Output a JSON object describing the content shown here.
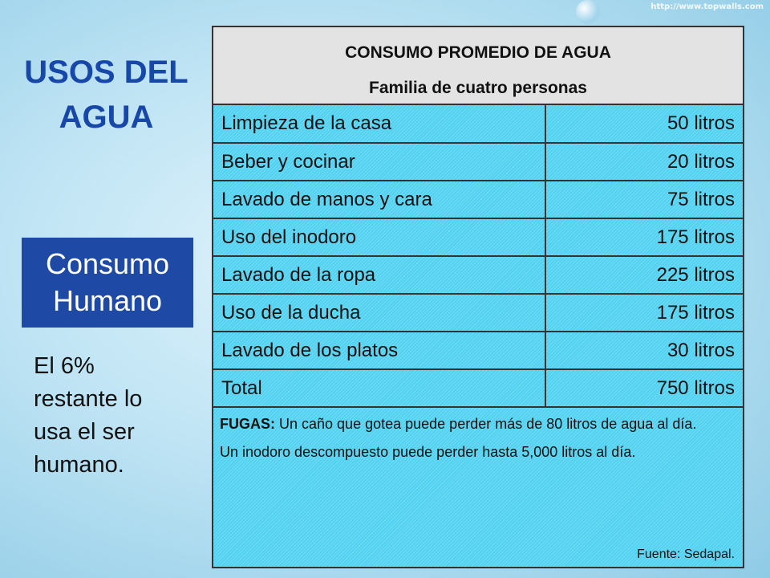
{
  "watermark": "http://www.topwalls.com",
  "title": {
    "line1": "USOS DEL",
    "line2": "AGUA"
  },
  "consumo": {
    "line1": "Consumo",
    "line2": "Humano"
  },
  "note": {
    "line1": "El 6%",
    "line2": "restante lo",
    "line3": "usa el ser",
    "line4": "humano."
  },
  "table": {
    "heading1": "CONSUMO PROMEDIO DE AGUA",
    "heading2": "Familia de cuatro personas",
    "rows": [
      {
        "label": "Limpieza de la casa",
        "value": "50 litros"
      },
      {
        "label": "Beber y cocinar",
        "value": "20 litros"
      },
      {
        "label": "Lavado de manos y cara",
        "value": "75 litros"
      },
      {
        "label": "Uso del inodoro",
        "value": "175 litros"
      },
      {
        "label": "Lavado de la ropa",
        "value": "225 litros"
      },
      {
        "label": "Uso de la ducha",
        "value": "175 litros"
      },
      {
        "label": "Lavado de los platos",
        "value": "30 litros"
      },
      {
        "label": "Total",
        "value": "750 litros"
      }
    ]
  },
  "fugas": {
    "bold_label": "FUGAS:",
    "text1": " Un caño que gotea puede perder más de 80 litros de agua al día.",
    "text2": "Un inodoro descompuesto puede perder hasta 5,000 litros al día.",
    "source": "Fuente: Sedapal."
  },
  "colors": {
    "title": "#1747a8",
    "consumo_box": "#1e4aa6",
    "table_body": "#52d2f0",
    "table_head": "#e3e3e3"
  }
}
